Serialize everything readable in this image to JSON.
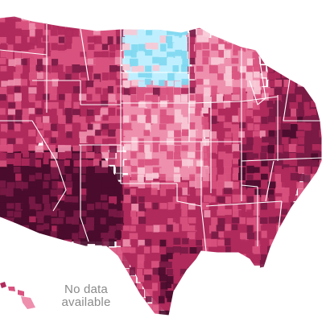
{
  "map": {
    "no_data_line1": "No data",
    "no_data_line2": "available",
    "colors": {
      "background": "#ffffff",
      "state_border": "#ffffff",
      "no_data": "#8a8a8a",
      "blue_light": "#bfefff",
      "blue_mid": "#7fd8f0",
      "pink_lightest": "#f7c9d6",
      "pink_light": "#ee8fae",
      "pink_mid": "#d9527f",
      "crimson": "#b02a5c",
      "dark_crimson": "#7a1a45",
      "darkest": "#4a0c2c"
    }
  }
}
